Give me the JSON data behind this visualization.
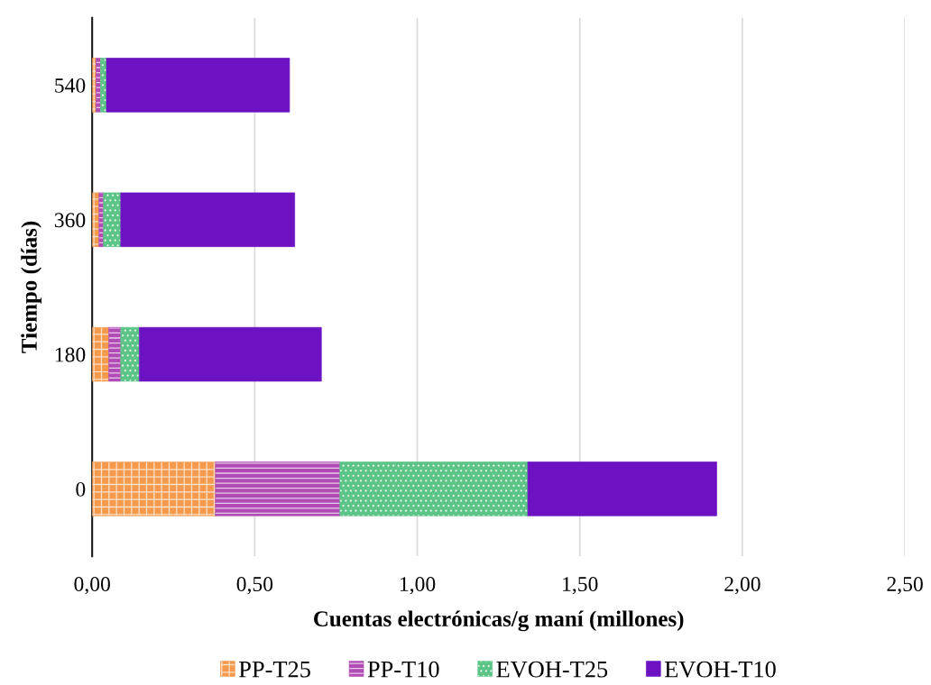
{
  "chart_data": {
    "type": "bar",
    "orientation": "horizontal",
    "stacked": true,
    "xlabel": "Cuentas electrónicas/g maní (millones)",
    "ylabel": "Tiempo (días)",
    "categories": [
      "540",
      "360",
      "180",
      "0"
    ],
    "series": [
      {
        "name": "PP-T25",
        "color": "#f59a4c",
        "values": [
          0.012,
          0.021,
          0.051,
          0.379
        ]
      },
      {
        "name": "PP-T10",
        "color": "#b04cb4",
        "values": [
          0.014,
          0.014,
          0.037,
          0.383
        ]
      },
      {
        "name": "EVOH-T25",
        "color": "#5cc486",
        "values": [
          0.018,
          0.053,
          0.057,
          0.578
        ]
      },
      {
        "name": "EVOH-T10",
        "color": "#6c12c2",
        "values": [
          0.563,
          0.535,
          0.56,
          0.581
        ]
      }
    ],
    "xlim": [
      0,
      2.5
    ],
    "xticks": [
      {
        "value": 0,
        "label": "0,00"
      },
      {
        "value": 0.5,
        "label": "0,50"
      },
      {
        "value": 1.0,
        "label": "1,00"
      },
      {
        "value": 1.5,
        "label": "1,50"
      },
      {
        "value": 2.0,
        "label": "2,00"
      },
      {
        "value": 2.5,
        "label": "2,50"
      }
    ],
    "grid": "x",
    "legend": "bottom"
  }
}
